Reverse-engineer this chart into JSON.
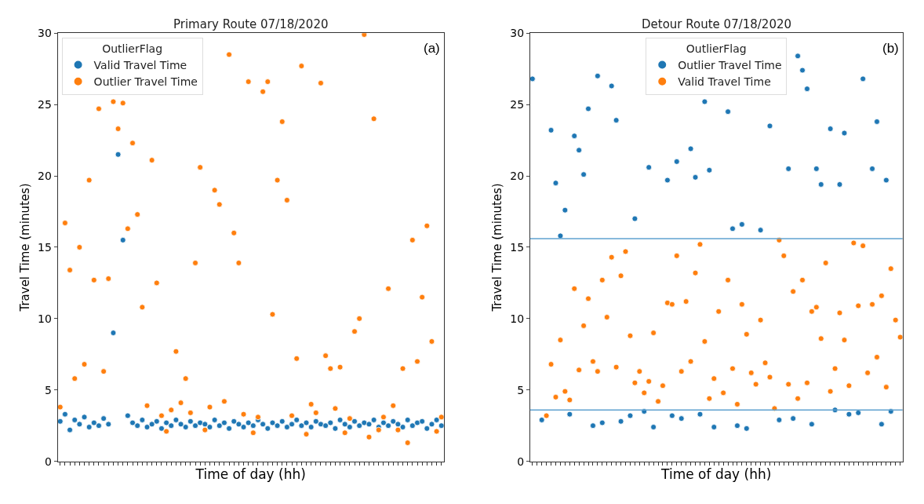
{
  "chart_data": [
    {
      "type": "scatter",
      "title": "Primary Route 07/18/2020",
      "xlabel": "Time of day (hh)",
      "ylabel": "Travel Time (minutes)",
      "legend_title": "OutlierFlag",
      "legend": "top left",
      "marker": "circle",
      "grid": false,
      "tick_labels": "y",
      "annotations": [
        "(a)"
      ],
      "categories": [
        null,
        null,
        null,
        null,
        null,
        null,
        null,
        null,
        null,
        null,
        null,
        null,
        null,
        null,
        null,
        null,
        null,
        null,
        null,
        null,
        null,
        null,
        null,
        null,
        null,
        null,
        null,
        null,
        null,
        null,
        null,
        null,
        null,
        null,
        null,
        null,
        null,
        null,
        null,
        null,
        null,
        null,
        null,
        null,
        null,
        null,
        null,
        null,
        null,
        null,
        null,
        null,
        null,
        null,
        null,
        null,
        null,
        null,
        null,
        null,
        null,
        null,
        null,
        null,
        null,
        null,
        null,
        null,
        null,
        null,
        null,
        null,
        null,
        null,
        null,
        null,
        null,
        null,
        null,
        null
      ],
      "ylim": [
        0,
        30
      ],
      "yticks": [
        0,
        5,
        10,
        15,
        20,
        25,
        30
      ],
      "series": [
        {
          "name": "Valid Travel Time",
          "color": "#1f77b4",
          "values": [
            2.8,
            3.3,
            2.2,
            2.9,
            2.6,
            3.1,
            2.4,
            2.7,
            2.5,
            3.0,
            2.6,
            9.0,
            21.5,
            15.5,
            3.2,
            2.7,
            2.5,
            2.9,
            2.4,
            2.6,
            2.8,
            2.3,
            2.7,
            2.5,
            2.9,
            2.6,
            2.4,
            2.8,
            2.5,
            2.7,
            2.6,
            2.4,
            2.9,
            2.5,
            2.7,
            2.3,
            2.8,
            2.6,
            2.4,
            2.7,
            2.5,
            2.9,
            2.6,
            2.3,
            2.7,
            2.5,
            2.8,
            2.4,
            2.6,
            2.9,
            2.5,
            2.7,
            2.4,
            2.8,
            2.6,
            2.5,
            2.7,
            2.3,
            2.9,
            2.6,
            2.4,
            2.8,
            2.5,
            2.7,
            2.6,
            2.9,
            2.4,
            2.7,
            2.5,
            2.8,
            2.6,
            2.4,
            2.9,
            2.5,
            2.7,
            2.8,
            2.3,
            2.6,
            2.9,
            2.5
          ]
        },
        {
          "name": "Outlier Travel Time",
          "color": "#ff7f0e",
          "values": [
            3.8,
            16.7,
            13.4,
            5.8,
            15.0,
            6.8,
            19.7,
            12.7,
            24.7,
            6.3,
            12.8,
            25.2,
            23.3,
            25.1,
            16.3,
            22.3,
            17.3,
            10.8,
            3.9,
            21.1,
            12.5,
            3.2,
            2.1,
            3.6,
            7.7,
            4.1,
            5.8,
            3.4,
            13.9,
            20.6,
            2.2,
            3.8,
            19.0,
            18.0,
            4.2,
            28.5,
            16.0,
            13.9,
            3.3,
            26.6,
            2.0,
            3.1,
            25.9,
            26.6,
            10.3,
            19.7,
            23.8,
            18.3,
            3.2,
            7.2,
            27.7,
            1.9,
            4.0,
            3.4,
            26.5,
            7.4,
            6.5,
            3.7,
            6.6,
            2.0,
            3.0,
            9.1,
            10.0,
            29.9,
            1.7,
            24.0,
            2.2,
            3.1,
            12.1,
            3.9,
            2.2,
            6.5,
            1.3,
            15.5,
            7.0,
            11.5,
            16.5,
            8.4,
            2.1,
            3.1
          ]
        }
      ]
    },
    {
      "type": "scatter",
      "title": "Detour Route 07/18/2020",
      "xlabel": "Time of day (hh)",
      "ylabel": "Travel Time (minutes)",
      "legend_title": "OutlierFlag",
      "legend": "top",
      "marker": "circle",
      "grid": false,
      "tick_labels": "y",
      "annotations": [
        "(b)"
      ],
      "categories": [
        null,
        null,
        null,
        null,
        null,
        null,
        null,
        null,
        null,
        null,
        null,
        null,
        null,
        null,
        null,
        null,
        null,
        null,
        null,
        null,
        null,
        null,
        null,
        null,
        null,
        null,
        null,
        null,
        null,
        null,
        null,
        null,
        null,
        null,
        null,
        null,
        null,
        null,
        null,
        null,
        null,
        null,
        null,
        null,
        null,
        null,
        null,
        null,
        null,
        null,
        null,
        null,
        null,
        null,
        null,
        null,
        null,
        null,
        null,
        null,
        null,
        null,
        null,
        null,
        null,
        null,
        null,
        null,
        null,
        null,
        null,
        null,
        null,
        null,
        null,
        null,
        null,
        null,
        null,
        null
      ],
      "ylim": [
        0,
        30
      ],
      "yticks": [
        0,
        5,
        10,
        15,
        20,
        25,
        30
      ],
      "ref_lines": [
        {
          "axis": "y",
          "value": 15.6,
          "color": "#5fa2d0"
        },
        {
          "axis": "y",
          "value": 3.6,
          "color": "#5fa2d0"
        }
      ],
      "series": [
        {
          "name": "Outlier Travel Time",
          "color": "#1f77b4",
          "values": [
            26.8,
            null,
            2.9,
            null,
            23.2,
            19.5,
            15.8,
            17.6,
            3.3,
            22.8,
            21.8,
            20.1,
            24.7,
            2.5,
            27.0,
            2.7,
            null,
            26.3,
            23.9,
            2.8,
            null,
            3.2,
            17.0,
            null,
            3.5,
            20.6,
            2.4,
            null,
            null,
            19.7,
            3.2,
            21.0,
            3.0,
            null,
            21.9,
            19.9,
            3.3,
            25.2,
            20.4,
            2.4,
            null,
            null,
            24.5,
            16.3,
            2.5,
            16.6,
            2.3,
            null,
            null,
            16.2,
            null,
            23.5,
            null,
            2.9,
            null,
            20.5,
            3.0,
            28.4,
            27.4,
            26.1,
            2.6,
            20.5,
            19.4,
            null,
            23.3,
            3.6,
            19.4,
            23.0,
            3.3,
            null,
            3.4,
            26.8,
            null,
            20.5,
            23.8,
            2.6,
            19.7,
            3.5,
            null,
            null
          ]
        },
        {
          "name": "Valid Travel Time",
          "color": "#ff7f0e",
          "values": [
            null,
            null,
            null,
            3.2,
            6.8,
            4.5,
            8.5,
            4.9,
            4.3,
            12.1,
            6.4,
            9.5,
            11.4,
            7.0,
            6.3,
            12.7,
            10.1,
            14.3,
            6.6,
            13.0,
            14.7,
            8.8,
            5.5,
            6.3,
            4.8,
            5.6,
            9.0,
            4.2,
            5.3,
            11.1,
            11.0,
            14.4,
            6.3,
            11.2,
            7.0,
            13.2,
            15.2,
            8.4,
            4.4,
            5.8,
            10.5,
            4.8,
            12.7,
            6.5,
            4.0,
            11.0,
            8.9,
            6.2,
            5.4,
            9.9,
            6.9,
            5.9,
            3.7,
            15.5,
            14.4,
            5.4,
            11.9,
            4.4,
            12.7,
            5.5,
            10.5,
            10.8,
            8.6,
            13.9,
            4.9,
            6.5,
            10.4,
            8.5,
            5.3,
            15.3,
            10.9,
            15.1,
            6.2,
            11.0,
            7.3,
            11.6,
            5.2,
            13.5,
            9.9,
            8.7
          ]
        }
      ]
    }
  ]
}
